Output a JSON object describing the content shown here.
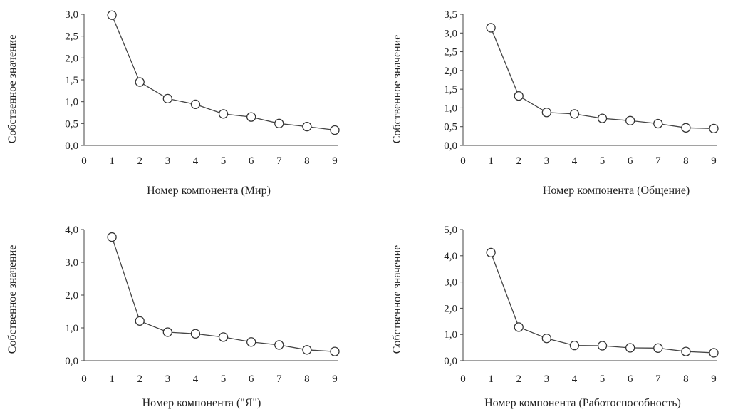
{
  "charts": [
    {
      "type": "line",
      "x": [
        1,
        2,
        3,
        4,
        5,
        6,
        7,
        8,
        9
      ],
      "values": [
        2.98,
        1.45,
        1.07,
        0.94,
        0.72,
        0.65,
        0.5,
        0.43,
        0.35
      ],
      "xticks": [
        "0",
        "1",
        "2",
        "3",
        "4",
        "5",
        "6",
        "7",
        "8",
        "9"
      ],
      "yticks": [
        "0,0",
        "0,5",
        "1,0",
        "1,5",
        "2,0",
        "2,5",
        "3,0"
      ],
      "ylim": [
        0,
        3.0
      ],
      "xlim": [
        0,
        9
      ],
      "xlabel": "Номер компонента (Мир)",
      "ylabel": "Собственное значение",
      "grid": false
    },
    {
      "type": "line",
      "x": [
        1,
        2,
        3,
        4,
        5,
        6,
        7,
        8,
        9
      ],
      "values": [
        3.14,
        1.32,
        0.88,
        0.84,
        0.72,
        0.66,
        0.58,
        0.47,
        0.45
      ],
      "xticks": [
        "0",
        "1",
        "2",
        "3",
        "4",
        "5",
        "6",
        "7",
        "8",
        "9"
      ],
      "yticks": [
        "0,0",
        "0,5",
        "1,0",
        "1,5",
        "2,0",
        "2,5",
        "3,0",
        "3,5"
      ],
      "ylim": [
        0,
        3.5
      ],
      "xlim": [
        0,
        9
      ],
      "xlabel": "Номер компонента (Общение)",
      "ylabel": "Собственное значение",
      "grid": false
    },
    {
      "type": "line",
      "x": [
        1,
        2,
        3,
        4,
        5,
        6,
        7,
        8,
        9
      ],
      "values": [
        3.77,
        1.21,
        0.87,
        0.82,
        0.72,
        0.57,
        0.48,
        0.33,
        0.28
      ],
      "xticks": [
        "0",
        "1",
        "2",
        "3",
        "4",
        "5",
        "6",
        "7",
        "8",
        "9"
      ],
      "yticks": [
        "0,0",
        "1,0",
        "2,0",
        "3,0",
        "4,0"
      ],
      "ylim": [
        0,
        4.0
      ],
      "xlim": [
        0,
        9
      ],
      "xlabel": "Номер компонента (\"Я\")",
      "ylabel": "Собственное значение",
      "grid": false
    },
    {
      "type": "line",
      "x": [
        1,
        2,
        3,
        4,
        5,
        6,
        7,
        8,
        9
      ],
      "values": [
        4.12,
        1.28,
        0.85,
        0.58,
        0.57,
        0.49,
        0.48,
        0.35,
        0.3
      ],
      "xticks": [
        "0",
        "1",
        "2",
        "3",
        "4",
        "5",
        "6",
        "7",
        "8",
        "9"
      ],
      "yticks": [
        "0,0",
        "1,0",
        "2,0",
        "3,0",
        "4,0",
        "5,0"
      ],
      "ylim": [
        0,
        5.0
      ],
      "xlim": [
        0,
        9
      ],
      "xlabel": "Номер компонента (Работоспособность)",
      "ylabel": "Собственное значение",
      "grid": false
    }
  ]
}
